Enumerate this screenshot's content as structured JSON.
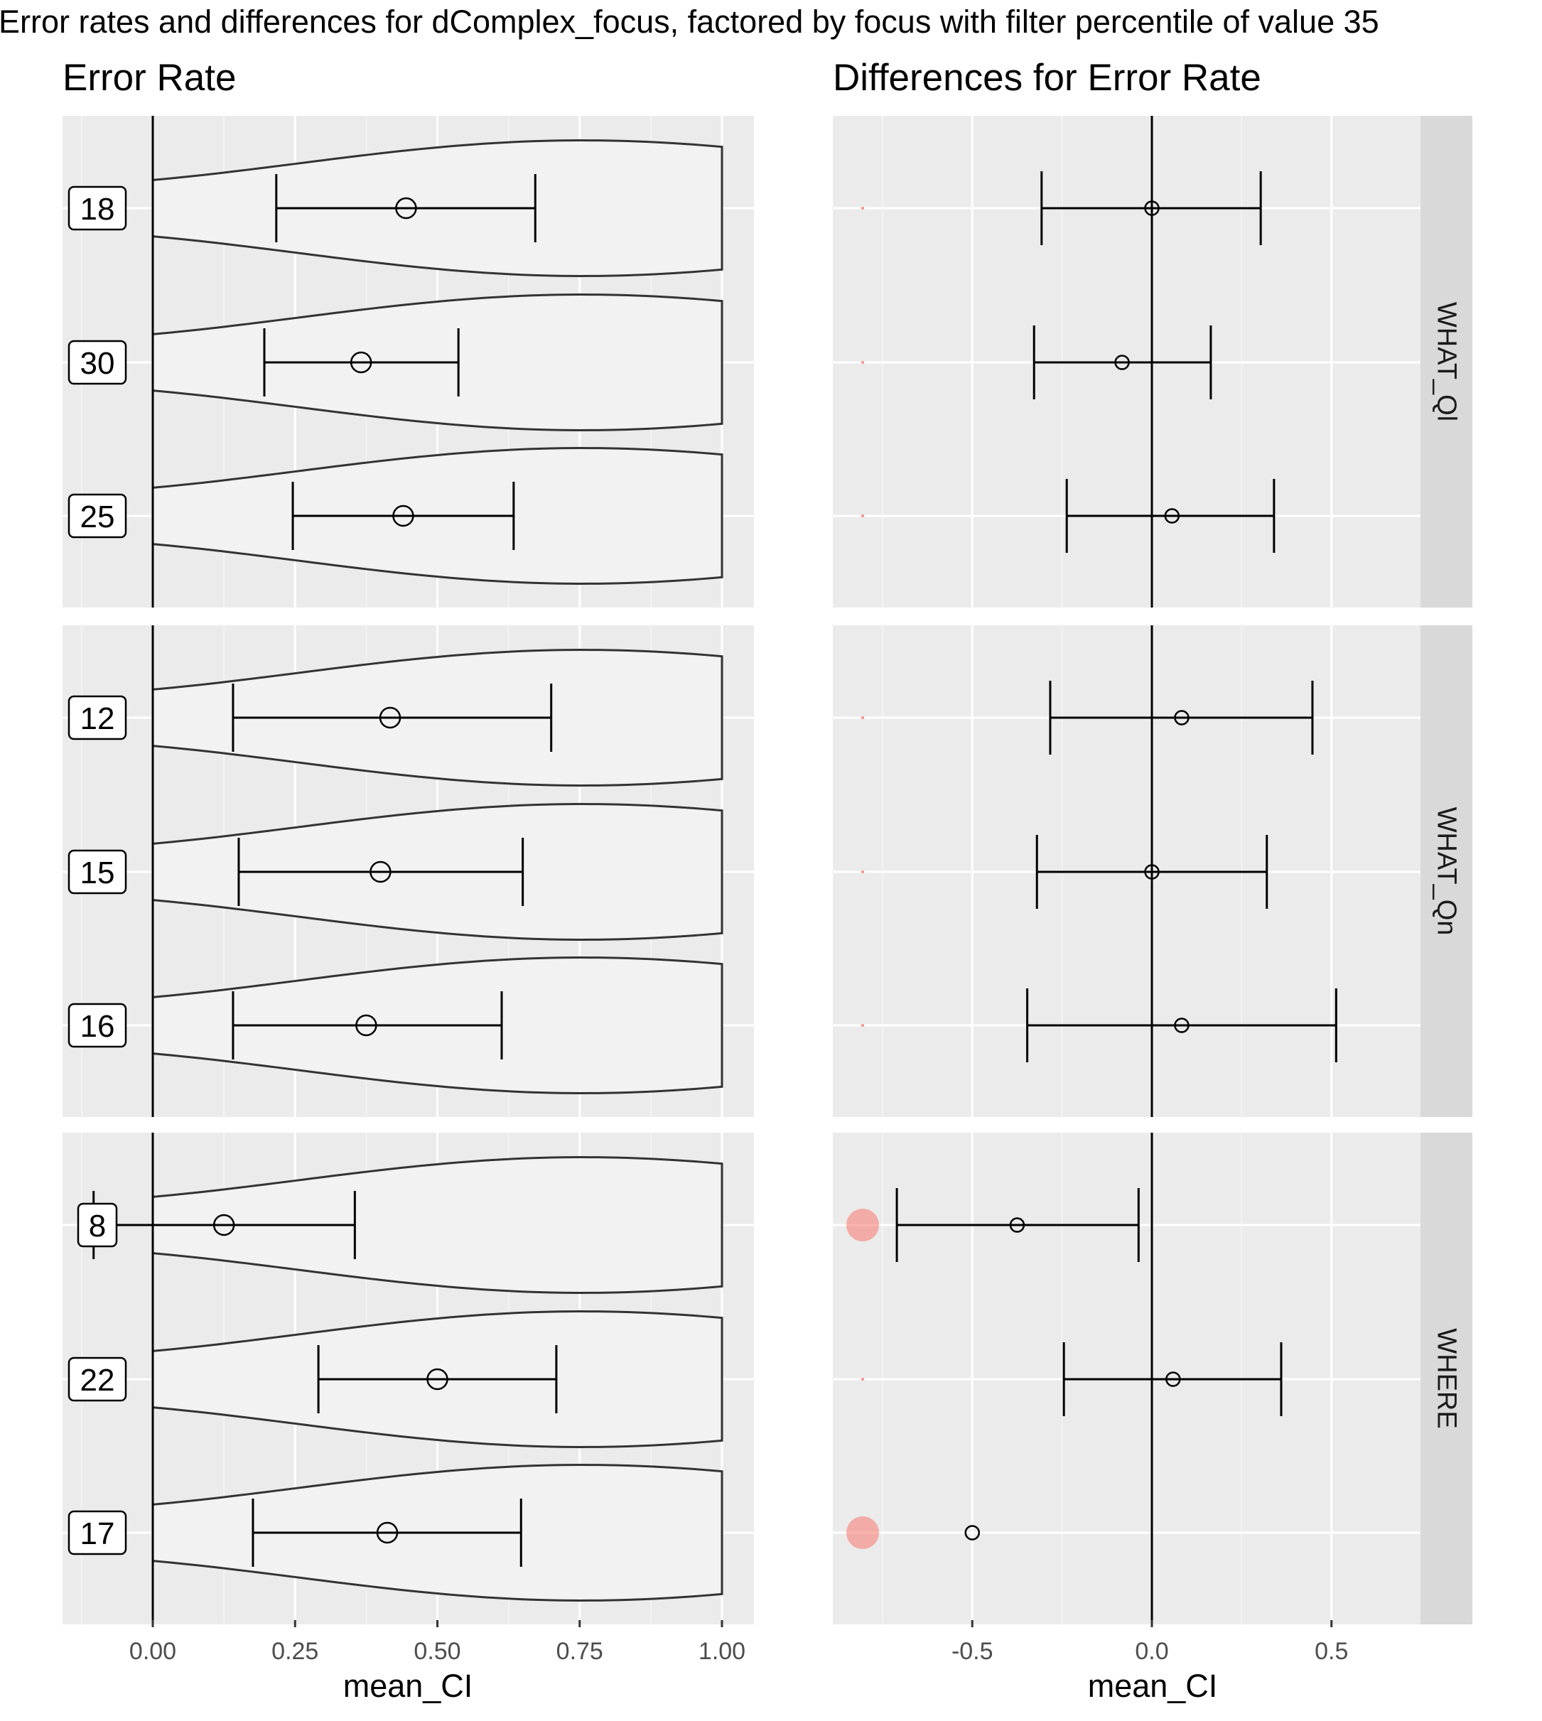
{
  "chart_data": [
    {
      "type": "violin",
      "title": "Error Rate",
      "suptitle": "Error rates and differences for dComplex_focus, factored by focus with filter percentile of value 35",
      "xlabel": "mean_CI",
      "ylabel": "",
      "xlim": [
        -0.16,
        1.06
      ],
      "xticks": [
        "0.00",
        "0.25",
        "0.50",
        "0.75",
        "1.00"
      ],
      "grid": true,
      "legend": "none",
      "facets": [
        {
          "name": "WHAT_Ql",
          "rows": [
            {
              "label": "18",
              "mean": 0.445,
              "ci_low": 0.217,
              "ci_high": 0.672
            },
            {
              "label": "30",
              "mean": 0.366,
              "ci_low": 0.196,
              "ci_high": 0.537
            },
            {
              "label": "25",
              "mean": 0.44,
              "ci_low": 0.246,
              "ci_high": 0.634
            }
          ]
        },
        {
          "name": "WHAT_Qn",
          "rows": [
            {
              "label": "12",
              "mean": 0.417,
              "ci_low": 0.141,
              "ci_high": 0.7
            },
            {
              "label": "15",
              "mean": 0.4,
              "ci_low": 0.151,
              "ci_high": 0.65
            },
            {
              "label": "16",
              "mean": 0.375,
              "ci_low": 0.141,
              "ci_high": 0.613
            }
          ]
        },
        {
          "name": "WHERE",
          "rows": [
            {
              "label": "8",
              "mean": 0.125,
              "ci_low": -0.104,
              "ci_high": 0.355
            },
            {
              "label": "22",
              "mean": 0.5,
              "ci_low": 0.291,
              "ci_high": 0.709
            },
            {
              "label": "17",
              "mean": 0.412,
              "ci_low": 0.176,
              "ci_high": 0.647
            }
          ]
        }
      ]
    },
    {
      "type": "errorbar",
      "title": "Differences for Error Rate",
      "xlabel": "mean_CI",
      "ylabel": "",
      "xlim": [
        -0.9,
        0.9
      ],
      "xticks": [
        "-0.5",
        "0.0",
        "0.5"
      ],
      "reference_line": 0,
      "grid": true,
      "legend": "none",
      "highlight_color": "#F8766D",
      "facets": [
        {
          "name": "WHAT_Ql",
          "rows": [
            {
              "mean": 0.0,
              "ci_low": -0.307,
              "ci_high": 0.303,
              "significant": false
            },
            {
              "mean": -0.083,
              "ci_low": -0.328,
              "ci_high": 0.164,
              "significant": false
            },
            {
              "mean": 0.056,
              "ci_low": -0.237,
              "ci_high": 0.34,
              "significant": false
            }
          ]
        },
        {
          "name": "WHAT_Qn",
          "rows": [
            {
              "mean": 0.083,
              "ci_low": -0.283,
              "ci_high": 0.447,
              "significant": false
            },
            {
              "mean": 0.0,
              "ci_low": -0.32,
              "ci_high": 0.32,
              "significant": false
            },
            {
              "mean": 0.083,
              "ci_low": -0.347,
              "ci_high": 0.513,
              "significant": false
            }
          ]
        },
        {
          "name": "WHERE",
          "rows": [
            {
              "mean": -0.375,
              "ci_low": -0.71,
              "ci_high": -0.037,
              "significant": true
            },
            {
              "mean": 0.059,
              "ci_low": -0.245,
              "ci_high": 0.36,
              "significant": false
            },
            {
              "mean": -0.5,
              "ci_low": null,
              "ci_high": null,
              "significant": true
            }
          ]
        }
      ]
    }
  ]
}
